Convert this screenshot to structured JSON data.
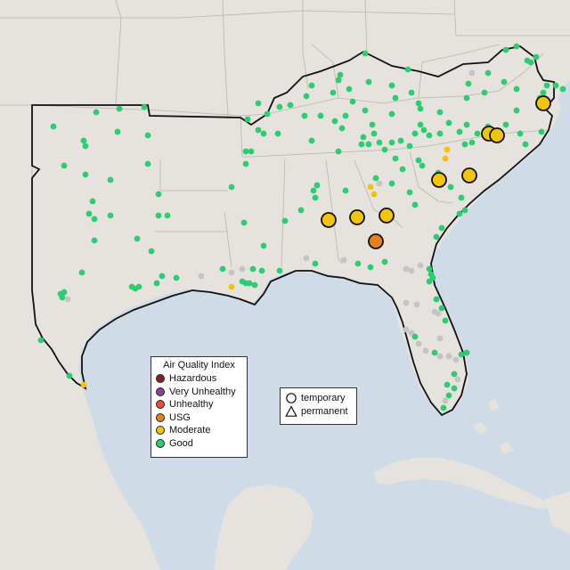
{
  "legend": {
    "title": "Air Quality Index",
    "categories": [
      {
        "label": "Hazardous",
        "color": "#7e2424"
      },
      {
        "label": "Very Unhealthy",
        "color": "#8f3f97"
      },
      {
        "label": "Unhealthy",
        "color": "#e74c3c"
      },
      {
        "label": "USG",
        "color": "#e67e22"
      },
      {
        "label": "Moderate",
        "color": "#f1c40f"
      },
      {
        "label": "Good",
        "color": "#2ecc71"
      }
    ]
  },
  "monitor_legend": {
    "items": [
      {
        "label": "temporary",
        "icon": "circle-outline-icon"
      },
      {
        "label": "permanent",
        "icon": "triangle-outline-icon"
      }
    ]
  },
  "colors": {
    "water": "#cfdbe6",
    "land": "#e6e3de",
    "no_data": "#c8c8c8"
  }
}
